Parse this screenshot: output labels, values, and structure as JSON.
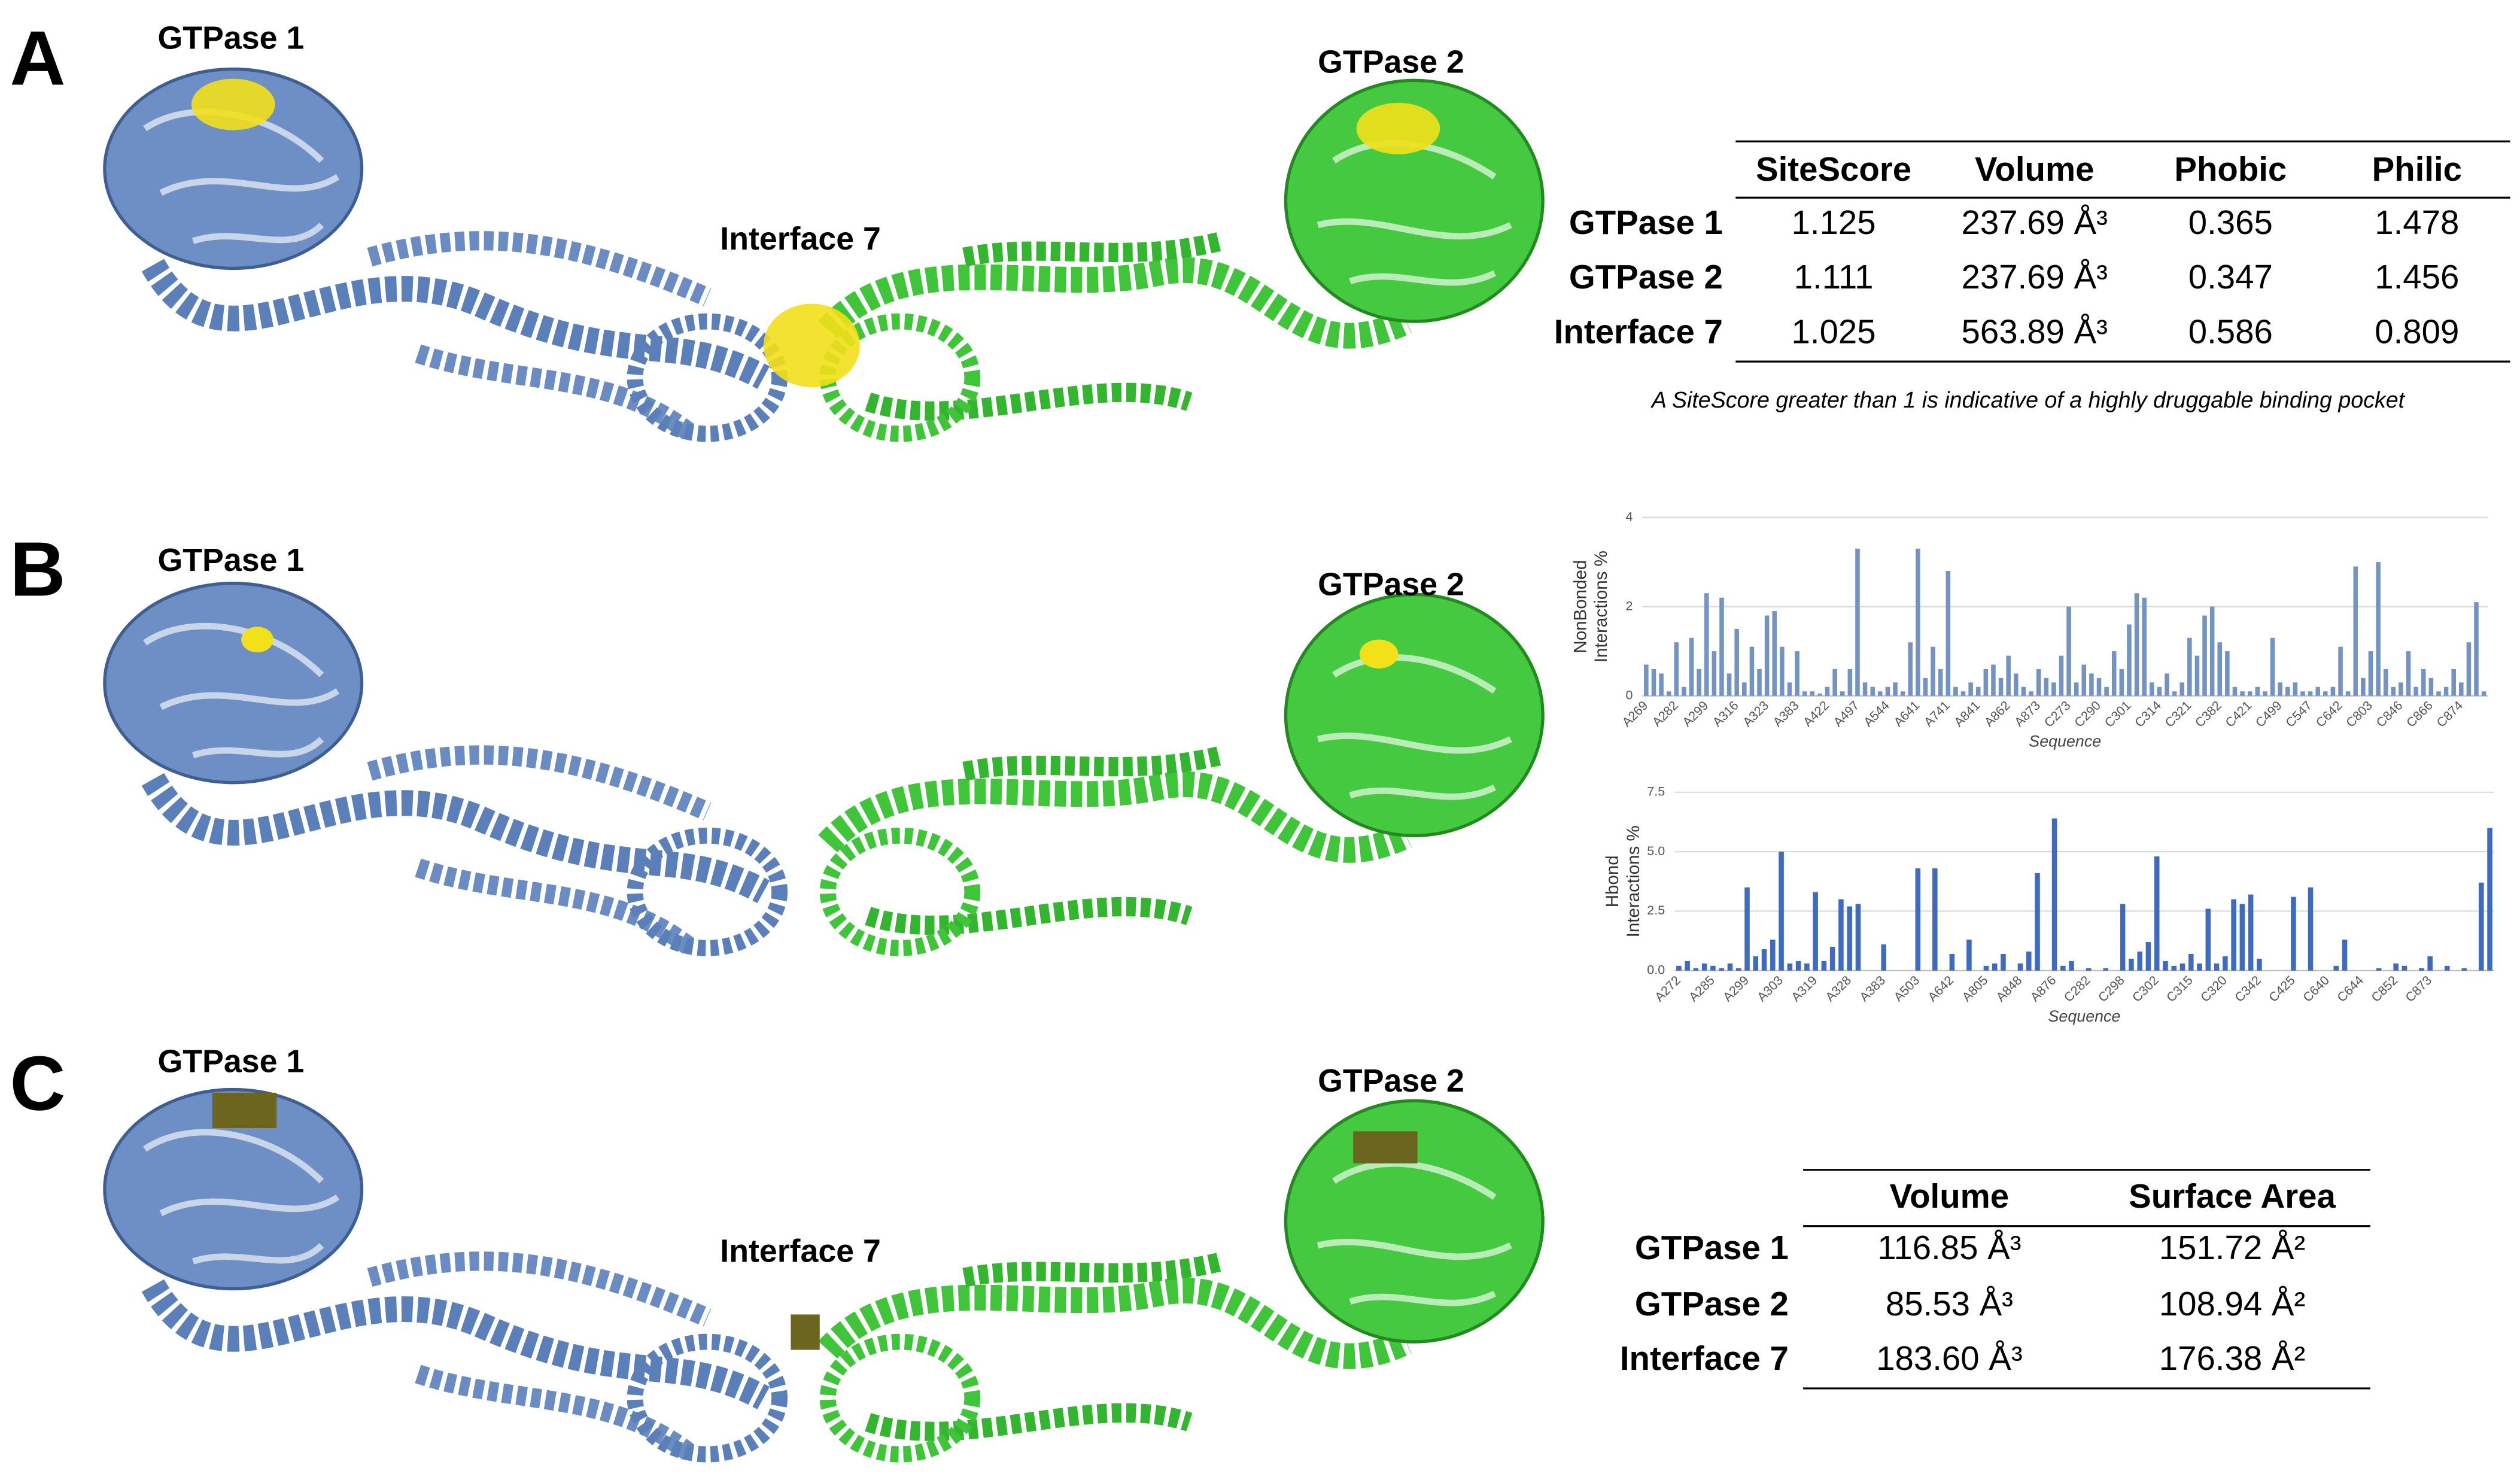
{
  "panels": [
    {
      "label": "A",
      "structure_labels": [
        "GTPase 1",
        "GTPase 2",
        "Interface 7"
      ]
    },
    {
      "label": "B",
      "structure_labels": [
        "GTPase 1",
        "GTPase 2"
      ]
    },
    {
      "label": "C",
      "structure_labels": [
        "GTPase 1",
        "GTPase 2",
        "Interface 7"
      ]
    }
  ],
  "site_table": {
    "columns": [
      "SiteScore",
      "Volume",
      "Phobic",
      "Philic"
    ],
    "rows": [
      {
        "name": "GTPase 1",
        "cells": [
          "1.125",
          "237.69 Å³",
          "0.365",
          "1.478"
        ]
      },
      {
        "name": "GTPase 2",
        "cells": [
          "1.111",
          "237.69 Å³",
          "0.347",
          "1.456"
        ]
      },
      {
        "name": "Interface 7",
        "cells": [
          "1.025",
          "563.89 Å³",
          "0.586",
          "0.809"
        ]
      }
    ]
  },
  "site_note": "A SiteScore greater than 1 is indicative of a highly druggable binding pocket",
  "chart_data": [
    {
      "type": "bar",
      "y_label": [
        "NonBonded",
        "Interactions %"
      ],
      "x_label": "Sequence",
      "color": "#7393c2",
      "ylim": [
        0,
        4
      ],
      "yticks": [
        0,
        2,
        4
      ],
      "grid": true,
      "categories": [
        "A269",
        null,
        null,
        null,
        "A282",
        null,
        null,
        null,
        "A299",
        null,
        null,
        null,
        "A316",
        null,
        null,
        null,
        "A323",
        null,
        null,
        null,
        "A383",
        null,
        null,
        null,
        "A422",
        null,
        null,
        null,
        "A497",
        null,
        null,
        null,
        "A544",
        null,
        null,
        null,
        "A641",
        null,
        null,
        null,
        "A741",
        null,
        null,
        null,
        "A841",
        null,
        null,
        null,
        "A862",
        null,
        null,
        null,
        "A873",
        null,
        null,
        null,
        "C273",
        null,
        null,
        null,
        "C290",
        null,
        null,
        null,
        "C301",
        null,
        null,
        null,
        "C314",
        null,
        null,
        null,
        "C321",
        null,
        null,
        null,
        "C382",
        null,
        null,
        null,
        "C421",
        null,
        null,
        null,
        "C499",
        null,
        null,
        null,
        "C547",
        null,
        null,
        null,
        "C642",
        null,
        null,
        null,
        "C803",
        null,
        null,
        null,
        "C846",
        null,
        null,
        null,
        "C866",
        null,
        null,
        null,
        "C874",
        null,
        null,
        null
      ],
      "values": [
        0.7,
        0.6,
        0.5,
        0.1,
        1.2,
        0.2,
        1.3,
        0.6,
        2.3,
        1.0,
        2.2,
        0.5,
        1.5,
        0.3,
        1.1,
        0.6,
        1.8,
        1.9,
        1.1,
        0.3,
        1.0,
        0.1,
        0.1,
        0.05,
        0.2,
        0.6,
        0.1,
        0.6,
        3.3,
        0.3,
        0.2,
        0.1,
        0.2,
        0.3,
        0.1,
        1.2,
        3.3,
        0.4,
        1.1,
        0.6,
        2.8,
        0.2,
        0.1,
        0.3,
        0.2,
        0.6,
        0.7,
        0.4,
        0.9,
        0.5,
        0.2,
        0.1,
        0.6,
        0.4,
        0.3,
        0.9,
        2.0,
        0.3,
        0.7,
        0.5,
        0.4,
        0.2,
        1.0,
        0.6,
        1.6,
        2.3,
        2.2,
        0.3,
        0.2,
        0.5,
        0.1,
        0.3,
        1.3,
        0.9,
        1.8,
        2.0,
        1.2,
        1.0,
        0.2,
        0.1,
        0.1,
        0.2,
        0.1,
        1.3,
        0.3,
        0.2,
        0.3,
        0.1,
        0.1,
        0.2,
        0.1,
        0.2,
        1.1,
        0.1,
        2.9,
        0.4,
        1.0,
        3.0,
        0.6,
        0.2,
        0.3,
        1.0,
        0.2,
        0.6,
        0.4,
        0.1,
        0.2,
        0.6,
        0.3,
        1.2,
        2.1,
        0.1
      ]
    },
    {
      "type": "bar",
      "y_label": [
        "Hbond",
        "Interactions %"
      ],
      "x_label": "Sequence",
      "color": "#3e6bbf",
      "ylim": [
        0,
        7.5
      ],
      "yticks": [
        {
          "value": 0,
          "label": "0.0"
        },
        {
          "value": 2.5,
          "label": "2.5"
        },
        {
          "value": 5,
          "label": "5.0"
        },
        {
          "value": 7.5,
          "label": "7.5"
        }
      ],
      "grid": true,
      "categories": [
        "A272",
        null,
        null,
        null,
        "A285",
        null,
        null,
        null,
        "A299",
        null,
        null,
        null,
        "A303",
        null,
        null,
        null,
        "A319",
        null,
        null,
        null,
        "A328",
        null,
        null,
        null,
        "A383",
        null,
        null,
        null,
        "A503",
        null,
        null,
        null,
        "A642",
        null,
        null,
        null,
        "A805",
        null,
        null,
        null,
        "A848",
        null,
        null,
        null,
        "A876",
        null,
        null,
        null,
        "C282",
        null,
        null,
        null,
        "C298",
        null,
        null,
        null,
        "C302",
        null,
        null,
        null,
        "C315",
        null,
        null,
        null,
        "C320",
        null,
        null,
        null,
        "C342",
        null,
        null,
        null,
        "C425",
        null,
        null,
        null,
        "C640",
        null,
        null,
        null,
        "C644",
        null,
        null,
        null,
        "C852",
        null,
        null,
        null,
        "C873",
        null,
        null,
        null,
        null,
        null,
        null,
        null
      ],
      "values": [
        0.2,
        0.4,
        0.1,
        0.3,
        0.2,
        0.1,
        0.3,
        0.1,
        3.5,
        0.6,
        0.9,
        1.3,
        5.0,
        0.3,
        0.4,
        0.3,
        3.3,
        0.4,
        1.0,
        3.0,
        2.7,
        2.8,
        0,
        0,
        1.1,
        0,
        0,
        0,
        4.3,
        0,
        4.3,
        0,
        0.7,
        0,
        1.3,
        0,
        0.2,
        0.3,
        0.7,
        0,
        0.3,
        0.8,
        4.1,
        0,
        6.4,
        0.2,
        0.4,
        0,
        0.1,
        0,
        0.1,
        0,
        2.8,
        0.5,
        0.8,
        1.2,
        4.8,
        0.4,
        0.2,
        0.3,
        0.7,
        0.3,
        2.6,
        0.3,
        0.6,
        3.0,
        2.8,
        3.2,
        0.5,
        0,
        0,
        0,
        3.1,
        0,
        3.5,
        0,
        0,
        0.2,
        1.3,
        0,
        0,
        0,
        0.1,
        0,
        0.3,
        0.2,
        0,
        0.1,
        0.6,
        0,
        0.2,
        0,
        0.1,
        0,
        3.7,
        6.0
      ]
    }
  ],
  "volume_table": {
    "columns": [
      "Volume",
      "Surface Area"
    ],
    "rows": [
      {
        "name": "GTPase 1",
        "cells": [
          "116.85 Å³",
          "151.72 Å²"
        ]
      },
      {
        "name": "GTPase 2",
        "cells": [
          "85.53 Å³",
          "108.94 Å²"
        ]
      },
      {
        "name": "Interface 7",
        "cells": [
          "183.60 Å³",
          "176.38 Å²"
        ]
      }
    ]
  }
}
